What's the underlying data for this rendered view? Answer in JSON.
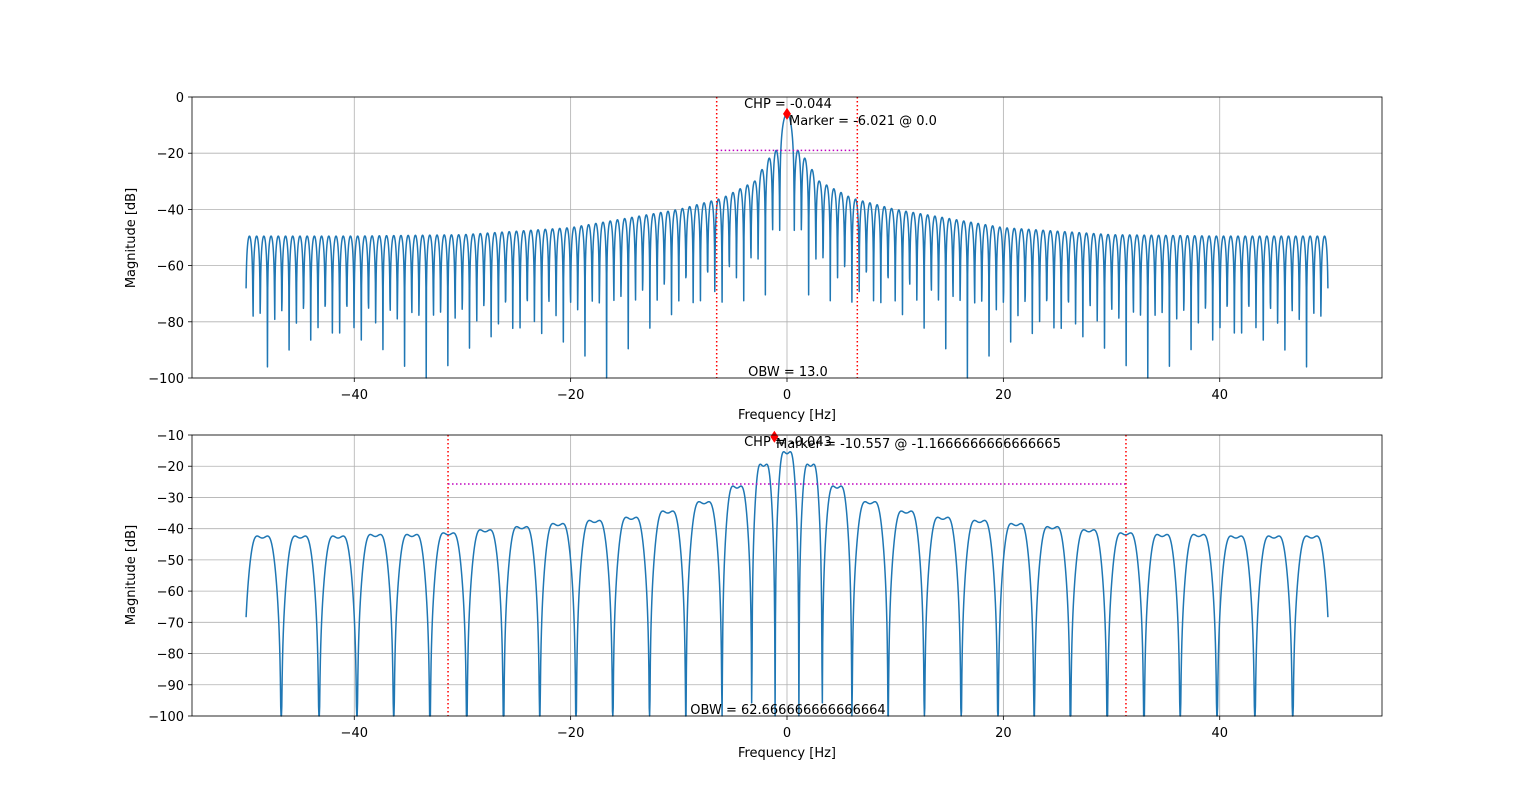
{
  "chart_data": [
    {
      "type": "line",
      "title": "",
      "xlabel": "Frequency [Hz]",
      "ylabel": "Magnitude [dB]",
      "xlim": [
        -55,
        55
      ],
      "ylim": [
        -100,
        0
      ],
      "grid": true,
      "xticks": [
        -40,
        -20,
        0,
        20,
        40
      ],
      "xtick_labels": [
        "−40",
        "−20",
        "0",
        "20",
        "40"
      ],
      "yticks": [
        0,
        -20,
        -40,
        -60,
        -80,
        -100
      ],
      "ytick_labels": [
        "0",
        "−20",
        "−40",
        "−60",
        "−80",
        "−100"
      ],
      "series": [
        {
          "style": "sinc-comb",
          "x_range": [
            -50,
            50
          ],
          "lobe_spacing_hz": 0.667,
          "floor_db": -100,
          "main_lobe_peak_db": -6.021,
          "sidelobe_peak_envelope": {
            "x": [
              -50,
              -40,
              -30,
              -20,
              -10,
              -6,
              -3,
              -1.2,
              1.2,
              3,
              6,
              10,
              20,
              30,
              40,
              50
            ],
            "y": [
              -49.5,
              -49.5,
              -49,
              -46.5,
              -40,
              -36,
              -30,
              -19,
              -19,
              -30,
              -36,
              -40,
              -46.5,
              -49,
              -49.5,
              -49.5
            ]
          }
        }
      ],
      "obw_bounds": [
        -6.5,
        6.5
      ],
      "power_level_db": -19,
      "marker": {
        "x": 0.0,
        "y": -6.021
      },
      "annotations": {
        "chp_text": "CHP = -0.044",
        "marker_text": "Marker = -6.021 @ 0.0",
        "obw_text": "OBW = 13.0"
      },
      "colors": {
        "series": "#1f77b4",
        "obw": "#ff0000",
        "power": "#bf00bf",
        "marker": "#ff0000"
      }
    },
    {
      "type": "line",
      "title": "",
      "xlabel": "Frequency [Hz]",
      "ylabel": "Magnitude [dB]",
      "xlim": [
        -55,
        55
      ],
      "ylim": [
        -100,
        -10
      ],
      "grid": true,
      "xticks": [
        -40,
        -20,
        0,
        20,
        40
      ],
      "xtick_labels": [
        "−40",
        "−20",
        "0",
        "20",
        "40"
      ],
      "yticks": [
        -10,
        -20,
        -30,
        -40,
        -50,
        -60,
        -70,
        -80,
        -90,
        -100
      ],
      "ytick_labels": [
        "−10",
        "−20",
        "−30",
        "−40",
        "−50",
        "−60",
        "−70",
        "−80",
        "−90",
        "−100"
      ],
      "series": [
        {
          "style": "lobed",
          "x_range": [
            -50,
            50
          ],
          "lobe_centers": [
            -48.5,
            -45.0,
            -41.5,
            -38.0,
            -34.7,
            -31.3,
            -27.9,
            -24.5,
            -21.2,
            -17.8,
            -14.4,
            -11.0,
            -7.7,
            -4.3,
            -2.2,
            0.0,
            2.2,
            4.3,
            7.7,
            11.0,
            14.4,
            17.8,
            21.2,
            24.5,
            27.9,
            31.3,
            34.7,
            38.0,
            41.5,
            45.0,
            48.5
          ],
          "lobe_peaks": [
            -39,
            -39,
            -39,
            -38.5,
            -38.5,
            -38,
            -37,
            -36,
            -35,
            -34,
            -33,
            -31,
            -28,
            -23,
            -16,
            -12,
            -16,
            -23,
            -28,
            -31,
            -33,
            -34,
            -35,
            -36,
            -37,
            -38,
            -38.5,
            -38.5,
            -39,
            -39,
            -39
          ],
          "floor_db": -100,
          "end_values": [
            -64,
            -64.5
          ]
        }
      ],
      "obw_bounds": [
        -31.333,
        31.333
      ],
      "power_level_db": -25.7,
      "marker": {
        "x": -1.1666666666666665,
        "y": -10.557
      },
      "annotations": {
        "chp_text": "CHP = -0.043",
        "marker_text": "Marker = -10.557 @ -1.1666666666666665",
        "obw_text": "OBW = 62.666666666666664"
      },
      "colors": {
        "series": "#1f77b4",
        "obw": "#ff0000",
        "power": "#bf00bf",
        "marker": "#ff0000"
      }
    }
  ]
}
